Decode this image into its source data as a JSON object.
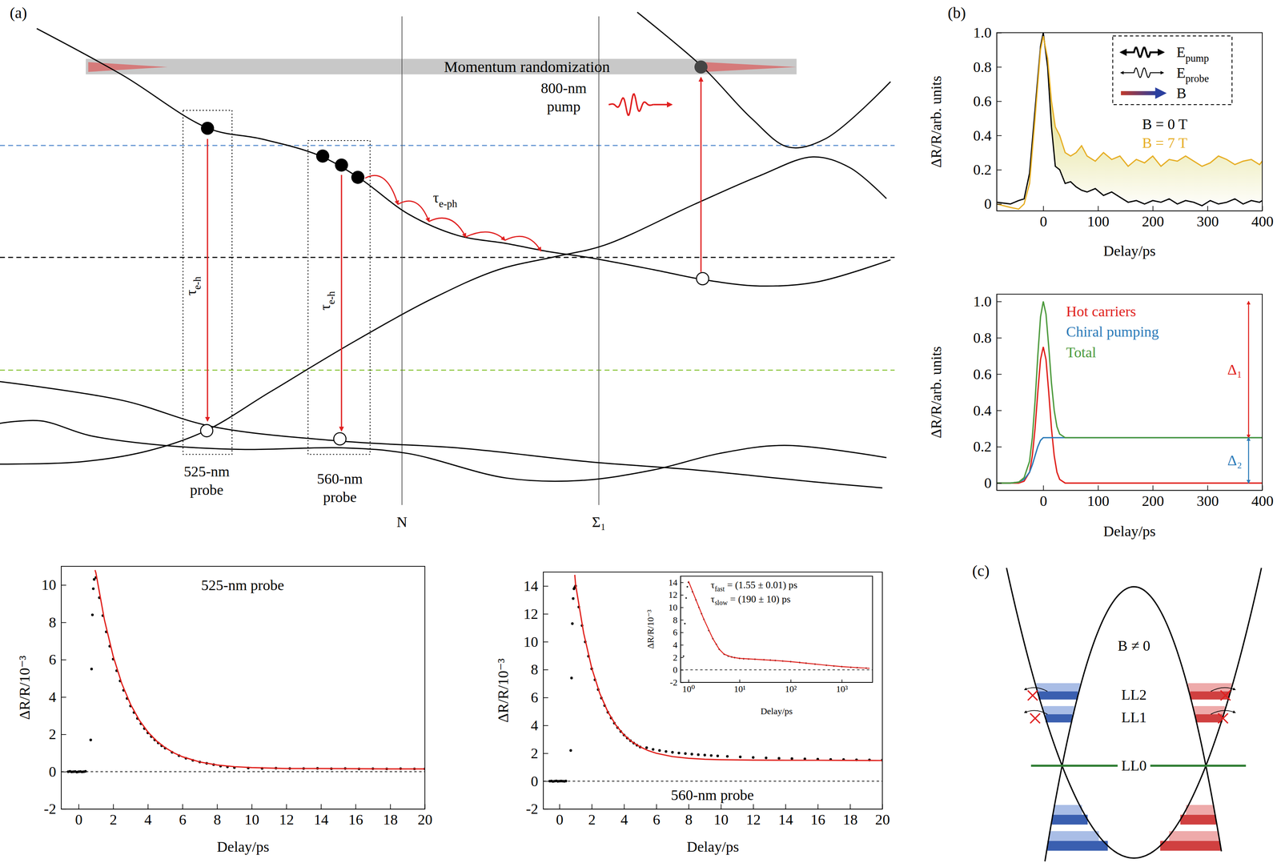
{
  "panel_labels": [
    "(a)",
    "(b)",
    "(c)"
  ],
  "diagram_a": {
    "band_text": "Momentum randomization",
    "pump_label": "800-nm pump",
    "e_ph_label": {
      "text": "τ",
      "sub": "e-ph"
    },
    "e_h_labels": [
      {
        "text": "τ",
        "sub": "e-h"
      },
      {
        "text": "τ",
        "sub": "e-h"
      }
    ],
    "probe_labels": [
      "525-nm probe",
      "560-nm probe"
    ],
    "k_points": [
      "N",
      "Σ₁"
    ]
  },
  "diagram_c": {
    "field_label": "B ≠ 0",
    "levels": [
      "LL2",
      "LL1",
      "LL0"
    ]
  },
  "chart_data": [
    {
      "type": "scatter",
      "title": "525-nm probe",
      "x_label": "Delay/ps",
      "y_label": "ΔR/R/10⁻³",
      "xlim": [
        -1,
        20
      ],
      "ylim": [
        -2,
        11
      ],
      "xticks": [
        0,
        2,
        4,
        6,
        8,
        10,
        12,
        14,
        16,
        18,
        20
      ],
      "yticks": [
        -2,
        0,
        2,
        4,
        6,
        8,
        10
      ],
      "hlines": [
        {
          "y": 0,
          "line_style": "dashed"
        }
      ],
      "series": [
        {
          "type": "scatter",
          "marker": "circle",
          "color": "#000000",
          "x": [
            -0.6,
            -0.5,
            -0.4,
            -0.3,
            -0.2,
            -0.1,
            0,
            0.1,
            0.2,
            0.3,
            0.4,
            0.7,
            0.75,
            0.8,
            0.85,
            0.9,
            1.0,
            1.2,
            1.4,
            1.6,
            1.8,
            2.0,
            2.2,
            2.4,
            2.6,
            2.8,
            3.0,
            3.2,
            3.4,
            3.6,
            3.8,
            4.0,
            4.2,
            4.4,
            4.6,
            4.8,
            5.0,
            5.4,
            5.8,
            6.2,
            6.6,
            7.0,
            7.4,
            7.8,
            8.2,
            8.6,
            9.0,
            9.8,
            10.6,
            11.4,
            12.2,
            13.0,
            13.8,
            14.6,
            15.4,
            16.2,
            17.0,
            17.8,
            18.6,
            19.4,
            20.0
          ],
          "values": [
            0,
            0.02,
            -0.01,
            0,
            0.01,
            -0.02,
            0,
            0.01,
            -0.01,
            0,
            0.02,
            1.7,
            5.5,
            8.4,
            9.8,
            10.3,
            10.4,
            9.32,
            8.36,
            7.49,
            6.72,
            6.03,
            5.41,
            4.86,
            4.36,
            3.92,
            3.52,
            3.17,
            2.85,
            2.57,
            2.31,
            2.08,
            1.88,
            1.7,
            1.54,
            1.39,
            1.26,
            1.04,
            0.86,
            0.72,
            0.61,
            0.52,
            0.45,
            0.38,
            0.3,
            0.26,
            0.22,
            0.2,
            0.18,
            0.19,
            0.17,
            0.17,
            0.18,
            0.16,
            0.17,
            0.15,
            0.16,
            0.15,
            0.16,
            0.15,
            0.15
          ]
        },
        {
          "type": "line",
          "line_style": "solid",
          "color": "#e0201b",
          "x": [
            0.95,
            1,
            1.5,
            2,
            2.5,
            3,
            3.5,
            4,
            4.5,
            5,
            5.5,
            6,
            7,
            8,
            9,
            10,
            12,
            14,
            16,
            18,
            20
          ],
          "values": [
            10.8,
            10.65,
            8.1,
            6.18,
            4.71,
            3.61,
            2.77,
            2.13,
            1.65,
            1.29,
            1.01,
            0.8,
            0.52,
            0.36,
            0.27,
            0.22,
            0.17,
            0.17,
            0.16,
            0.15,
            0.15
          ]
        }
      ]
    },
    {
      "type": "scatter",
      "title": "560-nm probe",
      "x_label": "Delay/ps",
      "y_label": "ΔR/R/10⁻³",
      "xlim": [
        -1,
        20
      ],
      "ylim": [
        -2,
        15
      ],
      "xticks": [
        0,
        2,
        4,
        6,
        8,
        10,
        12,
        14,
        16,
        18,
        20
      ],
      "yticks": [
        -2,
        0,
        2,
        4,
        6,
        8,
        10,
        12,
        14
      ],
      "hlines": [
        {
          "y": 0,
          "line_style": "dashed"
        }
      ],
      "series": [
        {
          "type": "scatter",
          "marker": "circle",
          "color": "#000000",
          "x": [
            -0.6,
            -0.5,
            -0.4,
            -0.3,
            -0.2,
            -0.1,
            0,
            0.1,
            0.2,
            0.3,
            0.4,
            0.7,
            0.75,
            0.8,
            0.85,
            0.9,
            0.95,
            1.0,
            1.2,
            1.4,
            1.6,
            1.8,
            2.0,
            2.2,
            2.4,
            2.6,
            2.8,
            3.0,
            3.2,
            3.4,
            3.6,
            3.8,
            4.0,
            4.2,
            4.4,
            4.6,
            4.8,
            5.0,
            5.4,
            5.8,
            6.2,
            6.6,
            7.0,
            7.4,
            7.8,
            8.2,
            8.6,
            9.0,
            9.4,
            9.8,
            10.4,
            11.2,
            12.0,
            12.8,
            13.6,
            14.4,
            15.2,
            16.0,
            16.8,
            17.6,
            18.4,
            19.2,
            20.0
          ],
          "values": [
            0,
            0.01,
            -0.02,
            0,
            0.02,
            -0.01,
            0,
            0.01,
            0,
            -0.01,
            0.01,
            2.2,
            7.4,
            11.3,
            13.1,
            13.8,
            13.9,
            14.0,
            12.49,
            11.16,
            9.99,
            8.96,
            8.06,
            7.27,
            6.57,
            5.96,
            5.42,
            4.94,
            4.53,
            4.16,
            3.84,
            3.56,
            3.31,
            3.09,
            2.9,
            2.73,
            2.58,
            2.45,
            2.4,
            2.28,
            2.2,
            2.13,
            2.07,
            2.02,
            1.98,
            1.94,
            1.9,
            1.87,
            1.84,
            1.81,
            1.78,
            1.74,
            1.7,
            1.67,
            1.64,
            1.62,
            1.6,
            1.58,
            1.56,
            1.55,
            1.53,
            1.52,
            1.51
          ]
        },
        {
          "type": "line",
          "line_style": "solid",
          "color": "#e0201b",
          "x": [
            0.95,
            1,
            1.5,
            2,
            2.5,
            3,
            3.5,
            4,
            4.5,
            5,
            5.5,
            6,
            7,
            8,
            9,
            10,
            12,
            14,
            16,
            18,
            20
          ],
          "values": [
            14.8,
            14.1,
            10.62,
            8.11,
            6.29,
            4.97,
            4.01,
            3.32,
            2.82,
            2.46,
            2.19,
            2.0,
            1.76,
            1.64,
            1.57,
            1.54,
            1.51,
            1.5,
            1.5,
            1.49,
            1.48
          ]
        }
      ]
    },
    {
      "type": "scatter",
      "log": "x",
      "x_label": "Delay/ps",
      "y_label": "ΔR/R/10⁻³",
      "xlim": [
        0.7,
        4000
      ],
      "ylim": [
        -2,
        15
      ],
      "xticks": [
        {
          "value": 1,
          "label": "10⁰"
        },
        {
          "value": 10,
          "label": "10¹"
        },
        {
          "value": 100,
          "label": "10²"
        },
        {
          "value": 1000,
          "label": "10³"
        }
      ],
      "yticks": [
        -2,
        0,
        2,
        4,
        6,
        8,
        10,
        12,
        14
      ],
      "hlines": [
        {
          "y": 0,
          "line_style": "dashed"
        }
      ],
      "annotations": [
        {
          "text": "τ",
          "sub": "fast",
          "rest": " = (1.55 ± 0.01) ps"
        },
        {
          "text": "τ",
          "sub": "slow",
          "rest": " = (190 ± 10) ps"
        }
      ],
      "series": [
        {
          "type": "scatter",
          "marker": "circle",
          "color": "#000000",
          "x": [
            0.8,
            0.85,
            0.9,
            0.95,
            1.0,
            1.2,
            1.4,
            1.6,
            1.8,
            2.0,
            2.5,
            3,
            3.5,
            4,
            5,
            6,
            7,
            8,
            10,
            12,
            15,
            20,
            30,
            40,
            50,
            70,
            100,
            150,
            200,
            300,
            500,
            700,
            1000,
            1500,
            2000,
            3000
          ],
          "values": [
            2.2,
            7.4,
            11.5,
            13.3,
            14.0,
            12.5,
            11.2,
            10.0,
            9.0,
            8.1,
            6.3,
            5.0,
            4.1,
            3.3,
            2.5,
            2.2,
            2.07,
            1.96,
            1.84,
            1.78,
            1.74,
            1.7,
            1.62,
            1.56,
            1.5,
            1.42,
            1.32,
            1.18,
            1.07,
            0.92,
            0.74,
            0.62,
            0.52,
            0.42,
            0.36,
            0.28
          ]
        },
        {
          "type": "line",
          "line_style": "solid",
          "color": "#e0201b",
          "x": [
            1,
            1.5,
            2,
            3,
            4,
            5,
            7,
            10,
            20,
            50,
            100,
            200,
            500,
            1000,
            2000,
            3500
          ],
          "values": [
            14.2,
            10.6,
            8.1,
            5.0,
            3.3,
            2.5,
            2.05,
            1.84,
            1.7,
            1.5,
            1.32,
            1.07,
            0.74,
            0.52,
            0.36,
            0.25
          ]
        }
      ]
    },
    {
      "type": "line",
      "x_label": "Delay/ps",
      "y_label": "ΔR/R/arb. units",
      "xlim": [
        -85,
        400
      ],
      "ylim": [
        -0.04,
        1.0
      ],
      "xticks": [
        0,
        100,
        200,
        300,
        400
      ],
      "yticks": [
        0,
        0.2,
        0.4,
        0.6,
        0.8,
        {
          "value": 1,
          "label": "1.0"
        }
      ],
      "legend": "top-right",
      "annotations": [
        {
          "text": "E",
          "sub": "pump"
        },
        {
          "text": "E",
          "sub": "probe"
        },
        {
          "text": "B"
        }
      ],
      "x": [
        -85,
        -60,
        -45,
        -35,
        -25,
        -15,
        -5,
        0,
        8,
        15,
        22,
        30,
        40,
        50,
        60,
        70,
        80,
        95,
        110,
        125,
        140,
        155,
        170,
        185,
        200,
        215,
        230,
        245,
        260,
        275,
        290,
        305,
        320,
        335,
        350,
        365,
        380,
        395,
        400
      ],
      "series": [
        {
          "name": "B = 0 T",
          "color": "#000000",
          "values": [
            0.01,
            0.0,
            0.02,
            0.03,
            0.18,
            0.55,
            0.92,
            1.0,
            0.8,
            0.45,
            0.22,
            0.2,
            0.12,
            0.13,
            0.1,
            0.08,
            0.07,
            0.09,
            0.05,
            0.07,
            0.04,
            0.01,
            0.02,
            0.0,
            0.02,
            0.01,
            0.03,
            0.0,
            0.02,
            0.01,
            -0.01,
            0.02,
            0.0,
            0.01,
            0.03,
            0.0,
            0.02,
            0.01,
            0.02
          ]
        },
        {
          "name": "B = 7 T",
          "color": "#e6ae25",
          "values": [
            0.0,
            -0.02,
            -0.03,
            0.0,
            0.12,
            0.5,
            0.9,
            0.98,
            0.85,
            0.6,
            0.45,
            0.4,
            0.3,
            0.28,
            0.3,
            0.34,
            0.28,
            0.25,
            0.3,
            0.26,
            0.28,
            0.22,
            0.26,
            0.24,
            0.28,
            0.22,
            0.26,
            0.25,
            0.28,
            0.25,
            0.22,
            0.24,
            0.28,
            0.26,
            0.23,
            0.25,
            0.26,
            0.23,
            0.25
          ]
        }
      ]
    },
    {
      "type": "line",
      "x_label": "Delay/ps",
      "y_label": "ΔR/R/arb. units",
      "xlim": [
        -85,
        400
      ],
      "ylim": [
        -0.04,
        1.04
      ],
      "xticks": [
        0,
        100,
        200,
        300,
        400
      ],
      "yticks": [
        0,
        0.2,
        0.4,
        0.6,
        0.8,
        {
          "value": 1,
          "label": "1.0"
        }
      ],
      "legend": "top-left",
      "brackets": [
        {
          "label": "Δ₁",
          "x": 375,
          "from": 0.25,
          "to": 1.0,
          "color": "#e0201b"
        },
        {
          "label": "Δ₂",
          "x": 375,
          "from": 0,
          "to": 0.25,
          "color": "#2a7ab8"
        }
      ],
      "x": [
        -85,
        -60,
        -45,
        -35,
        -25,
        -20,
        -15,
        -10,
        -5,
        0,
        5,
        10,
        15,
        20,
        25,
        30,
        40,
        50,
        75,
        100,
        150,
        200,
        250,
        300,
        350,
        400
      ],
      "series": [
        {
          "name": "Hot carriers",
          "color": "#e0201b",
          "values": [
            0,
            0,
            0,
            0.01,
            0.06,
            0.15,
            0.3,
            0.5,
            0.68,
            0.75,
            0.68,
            0.5,
            0.3,
            0.15,
            0.06,
            0.02,
            0,
            0,
            0,
            0,
            0,
            0,
            0,
            0,
            0,
            0
          ]
        },
        {
          "name": "Chiral pumping",
          "color": "#2a7ab8",
          "values": [
            0,
            0,
            0.005,
            0.02,
            0.06,
            0.1,
            0.15,
            0.2,
            0.235,
            0.25,
            0.25,
            0.25,
            0.25,
            0.25,
            0.25,
            0.25,
            0.25,
            0.25,
            0.25,
            0.25,
            0.25,
            0.25,
            0.25,
            0.25,
            0.25,
            0.25
          ]
        },
        {
          "name": "Total",
          "color": "#4c9a3c",
          "values": [
            0,
            0,
            0.005,
            0.03,
            0.12,
            0.25,
            0.45,
            0.7,
            0.915,
            1.0,
            0.93,
            0.75,
            0.55,
            0.4,
            0.31,
            0.27,
            0.25,
            0.25,
            0.25,
            0.25,
            0.25,
            0.25,
            0.25,
            0.25,
            0.25,
            0.25
          ]
        }
      ]
    }
  ]
}
